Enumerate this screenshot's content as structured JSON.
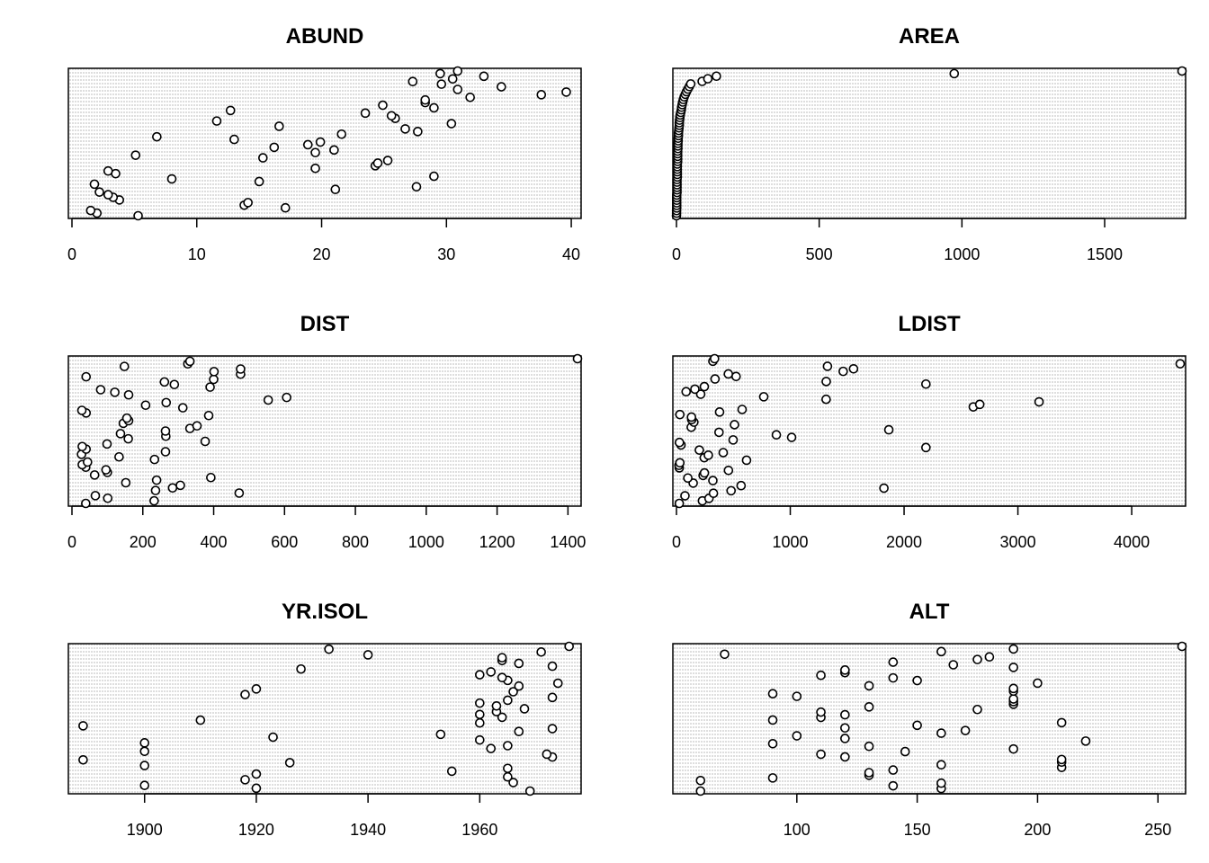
{
  "chart_data": [
    {
      "type": "scatter",
      "title": "ABUND",
      "xlim": [
        0,
        40.5
      ],
      "ticks": [
        0,
        10,
        20,
        30,
        40
      ],
      "tick_labels": [
        "0",
        "10",
        "20",
        "30",
        "40"
      ],
      "grid": true,
      "x": [
        5.3,
        2.0,
        1.5,
        17.1,
        13.8,
        14.1,
        3.8,
        3.3,
        2.9,
        2.2,
        21.1,
        27.6,
        1.8,
        15.0,
        8.0,
        29.0,
        3.5,
        2.9,
        19.5,
        24.3,
        24.5,
        25.3,
        15.3,
        5.1,
        19.5,
        21.0,
        16.2,
        18.9,
        19.9,
        13.0,
        6.8,
        21.6,
        27.7,
        26.7,
        16.6,
        30.4,
        11.6,
        25.9,
        25.6,
        23.5,
        12.7,
        29.0,
        24.9,
        28.3,
        28.3,
        31.9,
        37.6,
        39.6,
        30.9,
        34.4,
        29.6,
        27.3,
        30.5,
        33.0,
        29.5,
        30.9
      ],
      "y": [
        1,
        2,
        3,
        4,
        5,
        6,
        7,
        8,
        9,
        10,
        11,
        12,
        13,
        14,
        15,
        16,
        17,
        18,
        19,
        20,
        21,
        22,
        23,
        24,
        25,
        26,
        27,
        28,
        29,
        30,
        31,
        32,
        33,
        34,
        35,
        36,
        37,
        38,
        39,
        40,
        41,
        42,
        43,
        44,
        45,
        46,
        47,
        48,
        49,
        50,
        51,
        52,
        53,
        54,
        55,
        56
      ]
    },
    {
      "type": "scatter",
      "title": "AREA",
      "xlim": [
        0,
        1771
      ],
      "ticks": [
        0,
        500,
        1000,
        1500
      ],
      "tick_labels": [
        "0",
        "500",
        "1000",
        "1500"
      ],
      "grid": true,
      "x": [
        0.1,
        0.5,
        0.5,
        1,
        1,
        1,
        1,
        1,
        1,
        2,
        2,
        2,
        2,
        2,
        2,
        3,
        3,
        3,
        3,
        3,
        3,
        4,
        4,
        4,
        4,
        4,
        5,
        5,
        5,
        6,
        6,
        7,
        7,
        8,
        9,
        10,
        10,
        11,
        12,
        13,
        15,
        17,
        18,
        20,
        22,
        24,
        27,
        31,
        35,
        40,
        45,
        50,
        90,
        110,
        140,
        973,
        1771
      ],
      "y": [
        1,
        2,
        3,
        4,
        5,
        6,
        7,
        8,
        9,
        10,
        11,
        12,
        13,
        14,
        15,
        16,
        17,
        18,
        19,
        20,
        21,
        22,
        23,
        24,
        25,
        26,
        27,
        28,
        29,
        30,
        31,
        32,
        33,
        34,
        35,
        36,
        37,
        38,
        39,
        40,
        41,
        42,
        43,
        44,
        45,
        46,
        47,
        48,
        49,
        50,
        51,
        52,
        53,
        54,
        55,
        56,
        57
      ]
    },
    {
      "type": "scatter",
      "title": "DIST",
      "xlim": [
        0,
        1427
      ],
      "ticks": [
        0,
        200,
        400,
        600,
        800,
        1000,
        1200,
        1400
      ],
      "tick_labels": [
        "0",
        "200",
        "400",
        "600",
        "800",
        "1000",
        "1200",
        "1400"
      ],
      "grid": true,
      "x": [
        39,
        232,
        101,
        66,
        472,
        236,
        284,
        306,
        152,
        239,
        392,
        64,
        100,
        96,
        39,
        29,
        44,
        233,
        133,
        27,
        264,
        40,
        29,
        99,
        376,
        159,
        265,
        137,
        264,
        333,
        353,
        145,
        160,
        155,
        386,
        40,
        28,
        313,
        208,
        266,
        554,
        606,
        160,
        121,
        81,
        390,
        289,
        261,
        400,
        40,
        476,
        401,
        476,
        148,
        327,
        333,
        1427
      ],
      "y": [
        1,
        2,
        3,
        4,
        5,
        6,
        7,
        8,
        9,
        10,
        11,
        12,
        13,
        14,
        15,
        16,
        17,
        18,
        19,
        20,
        21,
        22,
        23,
        24,
        25,
        26,
        27,
        28,
        29,
        30,
        31,
        32,
        33,
        34,
        35,
        36,
        37,
        38,
        39,
        40,
        41,
        42,
        43,
        44,
        45,
        46,
        47,
        48,
        49,
        50,
        51,
        52,
        53,
        54,
        55,
        56,
        57
      ]
    },
    {
      "type": "scatter",
      "title": "LDIST",
      "xlim": [
        0,
        4442
      ],
      "ticks": [
        0,
        1000,
        2000,
        3000,
        4000
      ],
      "tick_labels": [
        "0",
        "1000",
        "2000",
        "3000",
        "4000"
      ],
      "grid": true,
      "x": [
        25,
        228,
        286,
        75,
        325,
        480,
        1823,
        568,
        147,
        320,
        100,
        234,
        246,
        457,
        25,
        22,
        30,
        616,
        244,
        280,
        411,
        201,
        2192,
        40,
        26,
        498,
        1012,
        878,
        374,
        1866,
        130,
        510,
        153,
        134,
        132,
        30,
        379,
        577,
        2608,
        2665,
        3186,
        1315,
        767,
        213,
        85,
        162,
        245,
        2192,
        1316,
        339,
        524,
        456,
        1465,
        1556,
        1327,
        4426,
        320,
        335
      ],
      "y": [
        1,
        2,
        3,
        4,
        5,
        6,
        7,
        8,
        9,
        10,
        11,
        12,
        13,
        14,
        15,
        16,
        17,
        18,
        19,
        20,
        21,
        22,
        23,
        24,
        25,
        26,
        27,
        28,
        29,
        30,
        31,
        32,
        33,
        34,
        35,
        36,
        37,
        38,
        39,
        40,
        41,
        42,
        43,
        44,
        45,
        46,
        47,
        48,
        49,
        50,
        51,
        52,
        53,
        54,
        55,
        56,
        57,
        58
      ]
    },
    {
      "type": "scatter",
      "title": "YR.ISOL",
      "xlim": [
        1887,
        1977.5
      ],
      "ticks": [
        1900,
        1920,
        1940,
        1960
      ],
      "tick_labels": [
        "1900",
        "1920",
        "1940",
        "1960"
      ],
      "grid": true,
      "x": [
        1969,
        1920,
        1900,
        1966,
        1918,
        1965,
        1920,
        1955,
        1965,
        1900,
        1926,
        1889,
        1973,
        1972,
        1900,
        1962,
        1965,
        1900,
        1960,
        1923,
        1953,
        1967,
        1973,
        1889,
        1960,
        1910,
        1964,
        1960,
        1963,
        1968,
        1963,
        1960,
        1965,
        1973,
        1918,
        1966,
        1920,
        1967,
        1974,
        1965,
        1964,
        1960,
        1962,
        1928,
        1973,
        1967,
        1964,
        1964,
        1940,
        1971,
        1933,
        1976
      ],
      "y": [
        1,
        2,
        3,
        4,
        5,
        6,
        7,
        8,
        9,
        10,
        11,
        12,
        13,
        14,
        15,
        16,
        17,
        18,
        19,
        20,
        21,
        22,
        23,
        24,
        25,
        26,
        27,
        28,
        29,
        30,
        31,
        32,
        33,
        34,
        35,
        36,
        37,
        38,
        39,
        40,
        41,
        42,
        43,
        44,
        45,
        46,
        47,
        48,
        49,
        50,
        51,
        52
      ]
    },
    {
      "type": "scatter",
      "title": "ALT",
      "xlim": [
        50,
        260
      ],
      "ticks": [
        100,
        150,
        200,
        250
      ],
      "tick_labels": [
        "100",
        "150",
        "200",
        "250"
      ],
      "grid": true,
      "x": [
        60,
        160,
        140,
        160,
        60,
        90,
        130,
        130,
        140,
        210,
        160,
        210,
        210,
        120,
        110,
        145,
        190,
        130,
        90,
        220,
        120,
        100,
        160,
        170,
        120,
        150,
        210,
        90,
        110,
        120,
        110,
        175,
        130,
        190,
        190,
        190,
        100,
        90,
        190,
        190,
        130,
        200,
        150,
        140,
        110,
        120,
        120,
        190,
        165,
        140,
        175,
        180,
        70,
        160,
        190,
        260
      ],
      "y": [
        1,
        2,
        3,
        4,
        5,
        6,
        7,
        8,
        9,
        10,
        11,
        12,
        13,
        14,
        15,
        16,
        17,
        18,
        19,
        20,
        21,
        22,
        23,
        24,
        25,
        26,
        27,
        28,
        29,
        30,
        31,
        32,
        33,
        34,
        35,
        36,
        37,
        38,
        39,
        40,
        41,
        42,
        43,
        44,
        45,
        46,
        47,
        48,
        49,
        50,
        51,
        52,
        53,
        54,
        55,
        56
      ]
    }
  ]
}
